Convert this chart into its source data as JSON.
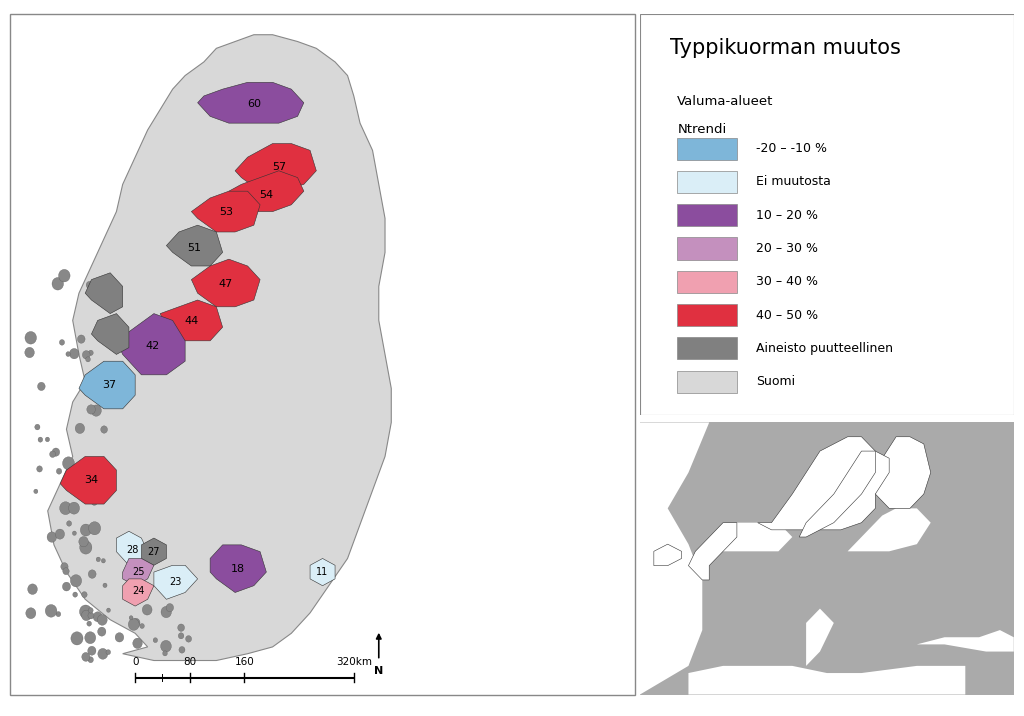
{
  "title": "Typpikuorman muutos",
  "legend_items": [
    {
      "label": "-20 – -10 %",
      "color": "#7EB6D9"
    },
    {
      "label": "Ei muutosta",
      "color": "#DAEEF7"
    },
    {
      "label": "10 – 20 %",
      "color": "#8B4D9E"
    },
    {
      "label": "20 – 30 %",
      "color": "#C490BE"
    },
    {
      "label": "30 – 40 %",
      "color": "#F0A0B0"
    },
    {
      "label": "40 – 50 %",
      "color": "#E03040"
    },
    {
      "label": "Aineisto puutteellinen",
      "color": "#808080"
    },
    {
      "label": "Suomi",
      "color": "#D8D8D8"
    }
  ],
  "background_color": "#FFFFFF",
  "finland_color": "#D8D8D8",
  "finland_border_color": "#888888",
  "outer_border_color": "#888888"
}
